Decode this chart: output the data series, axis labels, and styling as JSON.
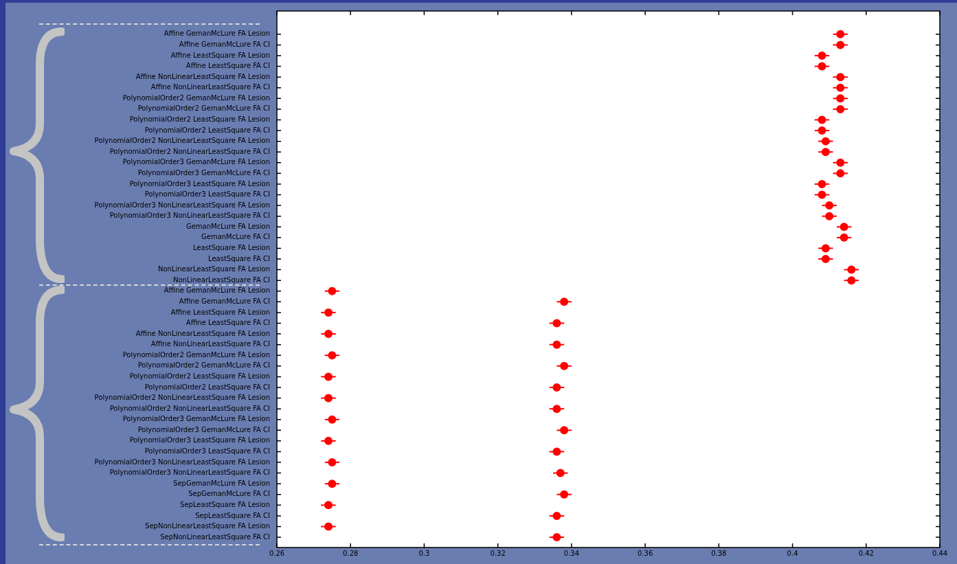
{
  "chart_data": {
    "type": "scatter",
    "orientation": "horizontal",
    "marker": "circle",
    "grid": false,
    "legend": false,
    "color": "#ff0000",
    "categories": [
      "Affine GemanMcLure FA Lesion",
      "Affine GemanMcLure FA CI",
      "Affine LeastSquare FA Lesion",
      "Affine LeastSquare FA CI",
      "Affine NonLinearLeastSquare FA Lesion",
      "Affine NonLinearLeastSquare FA CI",
      "PolynomialOrder2 GemanMcLure FA Lesion",
      "PolynomialOrder2 GemanMcLure FA CI",
      "PolynomialOrder2 LeastSquare FA Lesion",
      "PolynomialOrder2 LeastSquare FA CI",
      "PolynomialOrder2 NonLinearLeastSquare FA Lesion",
      "PolynomialOrder2 NonLinearLeastSquare FA CI",
      "PolynomialOrder3 GemanMcLure FA Lesion",
      "PolynomialOrder3 GemanMcLure FA CI",
      "PolynomialOrder3 LeastSquare FA Lesion",
      "PolynomialOrder3 LeastSquare FA CI",
      "PolynomialOrder3 NonLinearLeastSquare FA Lesion",
      "PolynomialOrder3 NonLinearLeastSquare FA CI",
      "GemanMcLure FA Lesion",
      "GemanMcLure FA CI",
      "LeastSquare FA Lesion",
      "LeastSquare FA CI",
      "NonLinearLeastSquare FA Lesion",
      "NonLinearLeastSquare FA CI",
      "Affine GemanMcLure FA Lesion",
      "Affine GemanMcLure FA CI",
      "Affine LeastSquare FA Lesion",
      "Affine LeastSquare FA CI",
      "Affine NonLinearLeastSquare FA Lesion",
      "Affine NonLinearLeastSquare FA CI",
      "PolynomialOrder2 GemanMcLure FA Lesion",
      "PolynomialOrder2 GemanMcLure FA CI",
      "PolynomialOrder2 LeastSquare FA Lesion",
      "PolynomialOrder2 LeastSquare FA CI",
      "PolynomialOrder2 NonLinearLeastSquare FA Lesion",
      "PolynomialOrder2 NonLinearLeastSquare FA CI",
      "PolynomialOrder3 GemanMcLure FA Lesion",
      "PolynomialOrder3 GemanMcLure FA CI",
      "PolynomialOrder3 LeastSquare FA Lesion",
      "PolynomialOrder3 LeastSquare FA CI",
      "PolynomialOrder3 NonLinearLeastSquare FA Lesion",
      "PolynomialOrder3 NonLinearLeastSquare FA CI",
      "SepGemanMcLure FA Lesion",
      "SepGemanMcLure FA CI",
      "SepLeastSquare FA Lesion",
      "SepLeastSquare FA CI",
      "SepNonLinearLeastSquare FA Lesion",
      "SepNonLinearLeastSquare FA CI"
    ],
    "values": [
      0.413,
      0.413,
      0.408,
      0.408,
      0.413,
      0.413,
      0.413,
      0.413,
      0.408,
      0.408,
      0.409,
      0.409,
      0.413,
      0.413,
      0.408,
      0.408,
      0.41,
      0.41,
      0.414,
      0.414,
      0.409,
      0.409,
      0.416,
      0.416,
      0.275,
      0.338,
      0.274,
      0.336,
      0.274,
      0.336,
      0.275,
      0.338,
      0.274,
      0.336,
      0.274,
      0.336,
      0.275,
      0.338,
      0.274,
      0.336,
      0.275,
      0.337,
      0.275,
      0.338,
      0.274,
      0.336,
      0.274,
      0.336
    ],
    "errors": [
      0.002,
      0.002,
      0.002,
      0.002,
      0.002,
      0.002,
      0.002,
      0.002,
      0.002,
      0.002,
      0.002,
      0.002,
      0.002,
      0.002,
      0.002,
      0.002,
      0.002,
      0.002,
      0.002,
      0.002,
      0.002,
      0.002,
      0.002,
      0.002,
      0.002,
      0.002,
      0.002,
      0.002,
      0.002,
      0.002,
      0.002,
      0.002,
      0.002,
      0.002,
      0.002,
      0.002,
      0.002,
      0.002,
      0.002,
      0.002,
      0.002,
      0.002,
      0.002,
      0.002,
      0.002,
      0.002,
      0.002,
      0.002
    ],
    "xlim": [
      0.26,
      0.44
    ],
    "xticks": [
      0.26,
      0.28,
      0.3,
      0.32,
      0.34,
      0.36,
      0.38,
      0.4,
      0.42,
      0.44
    ]
  }
}
